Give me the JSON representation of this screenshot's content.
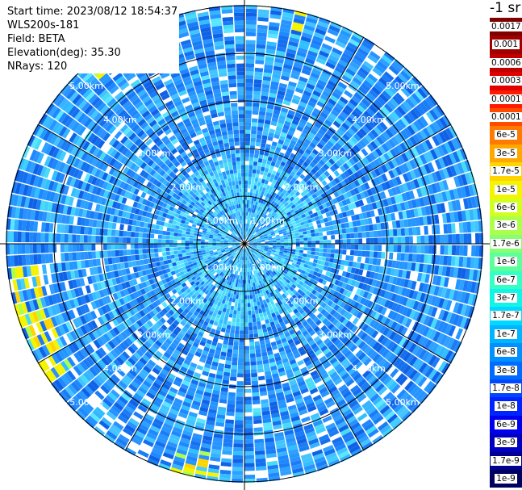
{
  "info": {
    "start_time": "Start time: 2023/08/12 18:54:37",
    "instrument": "WLS200s-181",
    "field": "Field: BETA",
    "elevation": "Elevation(deg): 35.30",
    "nrays": "NRays: 120"
  },
  "colorbar": {
    "units": "-1 sr",
    "levels": [
      {
        "label": "0.0017",
        "color": "#7f0000"
      },
      {
        "label": "0.001",
        "color": "#9f0000"
      },
      {
        "label": "0.0006",
        "color": "#c00000"
      },
      {
        "label": "0.0003",
        "color": "#e00000"
      },
      {
        "label": "0.00017",
        "color": "#ff1a00"
      },
      {
        "label": "0.0001",
        "color": "#ff4a00"
      },
      {
        "label": "6e-5",
        "color": "#ff7a00"
      },
      {
        "label": "3e-5",
        "color": "#ffa800"
      },
      {
        "label": "1.7e-5",
        "color": "#ffd400"
      },
      {
        "label": "1e-5",
        "color": "#f4f400"
      },
      {
        "label": "6e-6",
        "color": "#d2ff22"
      },
      {
        "label": "3e-6",
        "color": "#acff4c"
      },
      {
        "label": "1.7e-6",
        "color": "#86ff72"
      },
      {
        "label": "1e-6",
        "color": "#5cff9c"
      },
      {
        "label": "6e-7",
        "color": "#34ffc4"
      },
      {
        "label": "3e-7",
        "color": "#12f4e6"
      },
      {
        "label": "1.7e-7",
        "color": "#00d8ff"
      },
      {
        "label": "1e-7",
        "color": "#00b4ff"
      },
      {
        "label": "6e-8",
        "color": "#0090ff"
      },
      {
        "label": "3e-8",
        "color": "#006cff"
      },
      {
        "label": "1.7e-8",
        "color": "#0048ff"
      },
      {
        "label": "1e-8",
        "color": "#0024ff"
      },
      {
        "label": "6e-9",
        "color": "#0000f0"
      },
      {
        "label": "3e-9",
        "color": "#0000c0"
      },
      {
        "label": "1.7e-9",
        "color": "#000090"
      },
      {
        "label": "1e-9",
        "color": "#000060"
      }
    ]
  },
  "range_labels": [
    "1.00km",
    "2.00km",
    "3.00km",
    "4.00km",
    "5.00km"
  ],
  "plot": {
    "rays": 120,
    "gates": 60,
    "base_color": "#1e90ff"
  }
}
